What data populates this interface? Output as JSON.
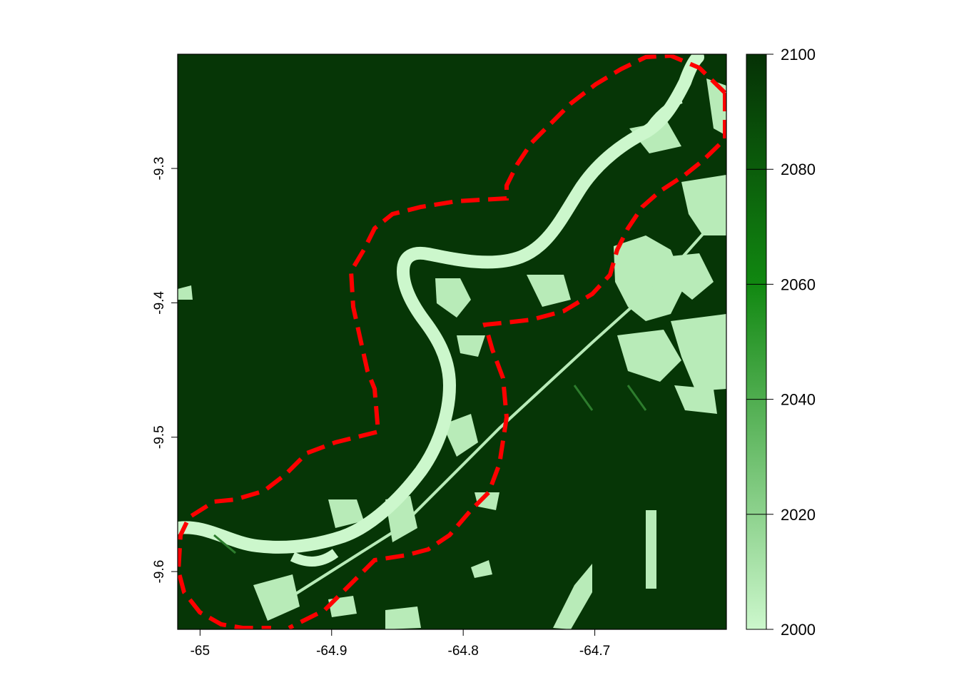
{
  "map": {
    "x_axis": {
      "ticks": [
        {
          "value": -65,
          "label": "-65"
        },
        {
          "value": -64.9,
          "label": "-64.9"
        },
        {
          "value": -64.8,
          "label": "-64.8"
        },
        {
          "value": -64.7,
          "label": "-64.7"
        }
      ],
      "range": [
        -65.017,
        -64.6
      ]
    },
    "y_axis": {
      "ticks": [
        {
          "value": -9.3,
          "label": "-9.3"
        },
        {
          "value": -9.4,
          "label": "-9.4"
        },
        {
          "value": -9.5,
          "label": "-9.5"
        },
        {
          "value": -9.6,
          "label": "-9.6"
        }
      ],
      "range": [
        -9.643,
        -9.215
      ]
    },
    "colors": {
      "forest": "#063606",
      "water": "#ccf7cc",
      "cleared": "#b8ebb8",
      "regrowth": "#2d7d2d",
      "boundary": "#ff0000"
    },
    "legend": {
      "min": 2000,
      "max": 2100,
      "ticks": [
        {
          "value": 2100,
          "label": "2100"
        },
        {
          "value": 2080,
          "label": "2080"
        },
        {
          "value": 2060,
          "label": "2060"
        },
        {
          "value": 2040,
          "label": "2040"
        },
        {
          "value": 2020,
          "label": "2020"
        },
        {
          "value": 2000,
          "label": "2000"
        }
      ],
      "color_low": "#ccf7cc",
      "color_mid": "#118811",
      "color_high": "#053105"
    }
  }
}
